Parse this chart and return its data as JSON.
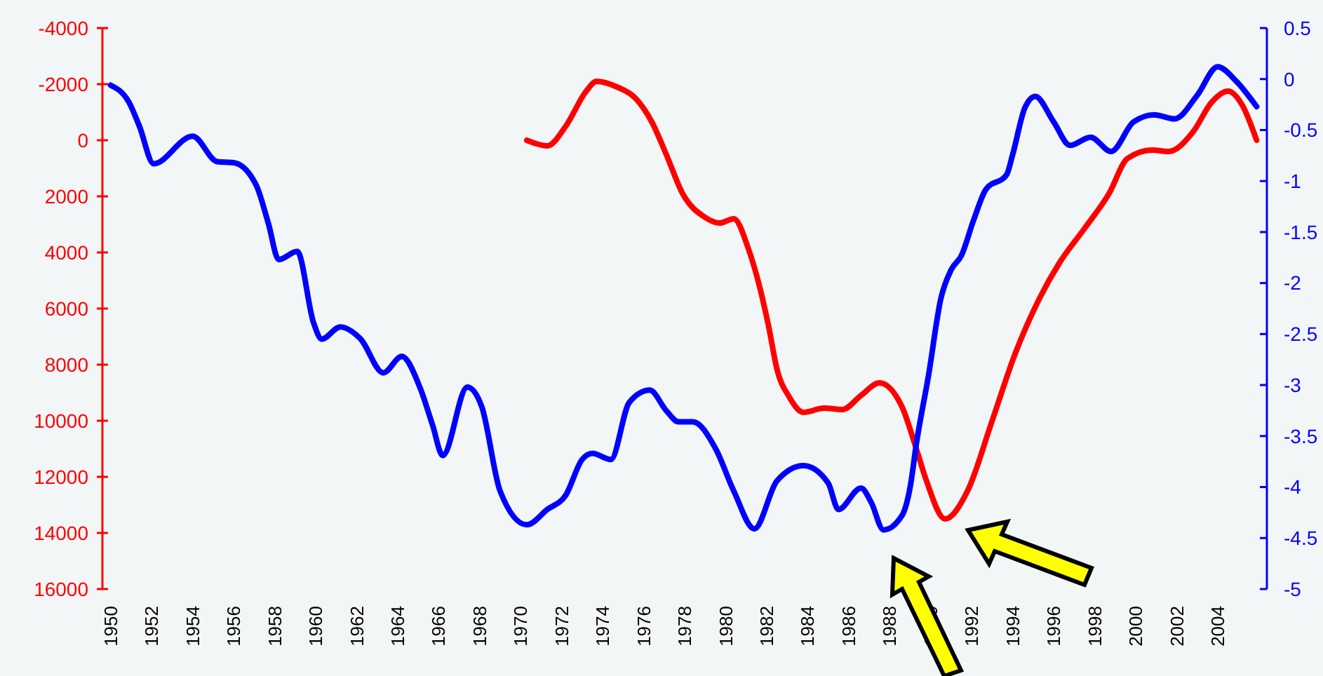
{
  "chart_data": {
    "type": "line",
    "xlim": [
      1949.6,
      2006.4
    ],
    "xticks": [
      1950,
      1952,
      1954,
      1956,
      1958,
      1960,
      1962,
      1964,
      1966,
      1968,
      1970,
      1972,
      1974,
      1976,
      1978,
      1980,
      1982,
      1984,
      1986,
      1988,
      1990,
      1992,
      1994,
      1996,
      1998,
      2000,
      2002,
      2004
    ],
    "ylim": [
      16000,
      -4000
    ],
    "yticks": [
      -4000,
      -2000,
      0,
      2000,
      4000,
      6000,
      8000,
      10000,
      12000,
      14000,
      16000
    ],
    "y2lim": [
      -5,
      0.5
    ],
    "y2ticks": [
      -5,
      -4.5,
      -4,
      -3.5,
      -3,
      -2.5,
      -2,
      -1.5,
      -1,
      -0.5,
      0,
      0.5
    ],
    "line_style": "solid",
    "marker": "none",
    "series": [
      {
        "color": "#ff0000",
        "x": [
          1970.3,
          1971.3,
          1972.2,
          1973.2,
          1973.7,
          1974.7,
          1975.6,
          1976.4,
          1977.1,
          1977.9,
          1979.0,
          1979.7,
          1980.4,
          1981.1,
          1981.7,
          1982.1,
          1982.5,
          1983.1,
          1983.8,
          1984.8,
          1985.7,
          1986.6,
          1987.5,
          1988.6,
          1989.3,
          1989.8,
          1990.7,
          1991.8,
          1993.0,
          1994.1,
          1995.3,
          1996.3,
          1997.5,
          1998.7,
          1999.6,
          2000.8,
          2001.6,
          2002.8,
          2003.7,
          2004.5,
          2005.2,
          2005.9
        ],
        "values": [
          0,
          200,
          -500,
          -1750,
          -2100,
          -1900,
          -1500,
          -650,
          500,
          1900,
          2750,
          2950,
          2800,
          3850,
          5350,
          6650,
          8150,
          9150,
          9700,
          9550,
          9600,
          9100,
          8650,
          9500,
          11000,
          12150,
          13500,
          12500,
          10000,
          7650,
          5650,
          4350,
          3150,
          1900,
          650,
          350,
          400,
          -300,
          -1350,
          -1750,
          -1250,
          0
        ]
      },
      {
        "color": "#0000ff",
        "axis": "y2",
        "x": [
          1950.0,
          1950.9,
          1951.4,
          1952.1,
          1954.0,
          1955.2,
          1956.0,
          1957.1,
          1957.7,
          1958.2,
          1959.1,
          1959.9,
          1960.3,
          1961.2,
          1962.2,
          1963.3,
          1964.2,
          1965.1,
          1965.7,
          1966.2,
          1967.4,
          1968.1,
          1969.0,
          1970.3,
          1971.3,
          1972.2,
          1973.0,
          1973.5,
          1974.4,
          1975.3,
          1976.3,
          1977.1,
          1977.7,
          1978.4,
          1979.5,
          1980.4,
          1981.4,
          1982.5,
          1983.8,
          1985.0,
          1985.5,
          1986.6,
          1987.1,
          1987.7,
          1988.6,
          1989.0,
          1989.3,
          1989.9,
          1990.5,
          1991.0,
          1991.5,
          1992.1,
          1992.7,
          1993.7,
          1994.0,
          1994.6,
          1995.1,
          1996.0,
          1996.8,
          1997.8,
          1998.8,
          1999.9,
          2000.9,
          2001.9,
          2003.0,
          2004.0,
          2004.9,
          2005.9
        ],
        "values": [
          -0.06,
          -0.23,
          -0.46,
          -0.83,
          -0.56,
          -0.81,
          -0.82,
          -1.04,
          -1.42,
          -1.77,
          -1.69,
          -2.39,
          -2.55,
          -2.43,
          -2.55,
          -2.88,
          -2.72,
          -3.03,
          -3.39,
          -3.69,
          -3.02,
          -3.21,
          -4.04,
          -4.37,
          -4.22,
          -4.08,
          -3.73,
          -3.67,
          -3.73,
          -3.17,
          -3.05,
          -3.25,
          -3.36,
          -3.36,
          -3.62,
          -4.04,
          -4.41,
          -3.94,
          -3.79,
          -3.96,
          -4.22,
          -4.01,
          -4.15,
          -4.42,
          -4.28,
          -4.0,
          -3.58,
          -2.9,
          -2.15,
          -1.87,
          -1.73,
          -1.38,
          -1.08,
          -0.94,
          -0.74,
          -0.28,
          -0.17,
          -0.42,
          -0.65,
          -0.57,
          -0.71,
          -0.42,
          -0.35,
          -0.39,
          -0.16,
          0.12,
          -0.02,
          -0.27
        ]
      }
    ]
  }
}
